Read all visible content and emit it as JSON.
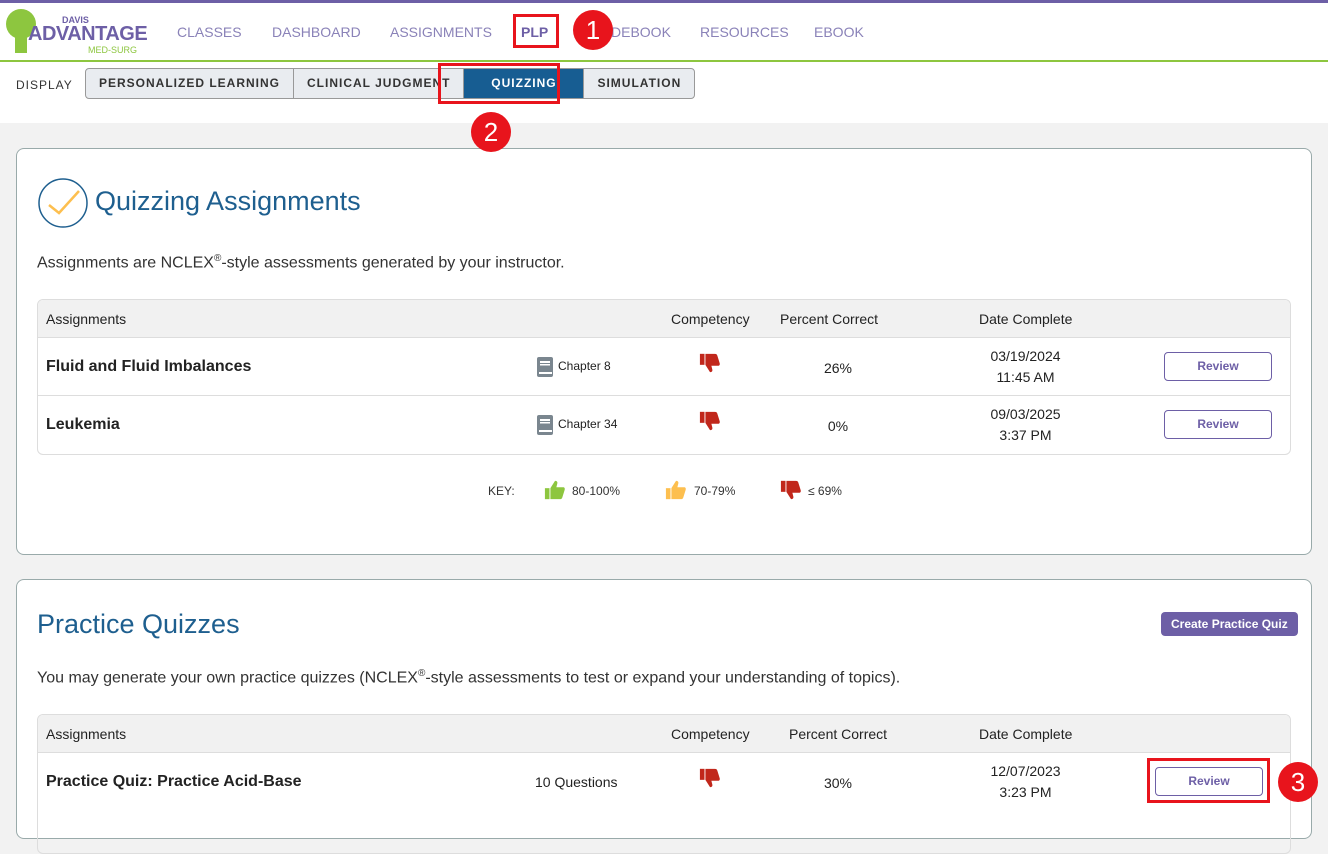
{
  "header": {
    "logo": {
      "line1": "DAVIS",
      "line2": "ADVANTAGE",
      "line3": "MED-SURG"
    },
    "nav": [
      "CLASSES",
      "DASHBOARD",
      "ASSIGNMENTS",
      "PLP",
      "GRADEBOOK",
      "RESOURCES",
      "EBOOK"
    ],
    "nav_visible": {
      "gradebook": "DEBOOK"
    },
    "active": "PLP"
  },
  "annotations": [
    "1",
    "2",
    "3"
  ],
  "display": {
    "label": "DISPLAY",
    "tabs": [
      "PERSONALIZED LEARNING",
      "CLINICAL JUDGMENT",
      "QUIZZING",
      "SIMULATION"
    ],
    "active": "QUIZZING"
  },
  "quizzing": {
    "title": "Quizzing Assignments",
    "desc_pre": "Assignments are NCLEX",
    "desc_sup": "®",
    "desc_post": "-style assessments generated by your instructor.",
    "columns": [
      "Assignments",
      "",
      "Competency",
      "Percent Correct",
      "Date Complete",
      ""
    ],
    "rows": [
      {
        "name": "Fluid and Fluid Imbalances",
        "chapter": "Chapter 8",
        "competency": "thumbs-down",
        "percent": "26%",
        "date": "03/19/2024",
        "time": "11:45 AM",
        "action": "Review"
      },
      {
        "name": "Leukemia",
        "chapter": "Chapter 34",
        "competency": "thumbs-down",
        "percent": "0%",
        "date": "09/03/2025",
        "time": "3:37 PM",
        "action": "Review"
      }
    ],
    "key": {
      "label": "KEY:",
      "items": [
        {
          "icon": "thumbs-up",
          "color": "#8dc63f",
          "label": "80-100%"
        },
        {
          "icon": "thumbs-up",
          "color": "#fdbf4f",
          "label": "70-79%"
        },
        {
          "icon": "thumbs-down",
          "color": "#c1271b",
          "label": "≤ 69%"
        }
      ]
    }
  },
  "practice": {
    "title": "Practice Quizzes",
    "create": "Create Practice Quiz",
    "desc_pre": "You may generate your own practice quizzes (NCLEX",
    "desc_sup": "®",
    "desc_post": "-style assessments to test or expand your understanding of topics).",
    "columns": [
      "Assignments",
      "",
      "Competency",
      "Percent Correct",
      "Date Complete",
      ""
    ],
    "rows": [
      {
        "name": "Practice Quiz: Practice Acid-Base",
        "questions": "10 Questions",
        "competency": "thumbs-down",
        "percent": "30%",
        "date": "12/07/2023",
        "time": "3:23 PM",
        "action": "Review"
      }
    ]
  },
  "colors": {
    "purple": "#6d5fa6",
    "green": "#8dc63f",
    "blue": "#175d92",
    "red": "#c1271b",
    "annotation": "#e8141c"
  }
}
